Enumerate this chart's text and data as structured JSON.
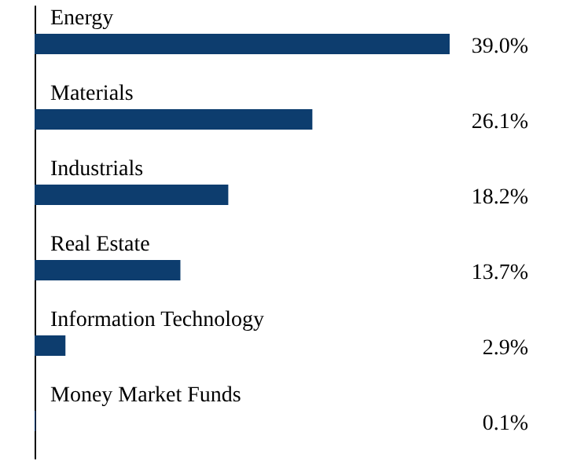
{
  "chart_data": {
    "type": "bar",
    "orientation": "horizontal",
    "categories": [
      "Energy",
      "Materials",
      "Industrials",
      "Real Estate",
      "Information Technology",
      "Money Market Funds"
    ],
    "values": [
      39.0,
      26.1,
      18.2,
      13.7,
      2.9,
      0.1
    ],
    "value_labels": [
      "39.0%",
      "26.1%",
      "18.2%",
      "13.7%",
      "2.9%",
      "0.1%"
    ],
    "color": "#0d3d6e",
    "grid": false
  }
}
